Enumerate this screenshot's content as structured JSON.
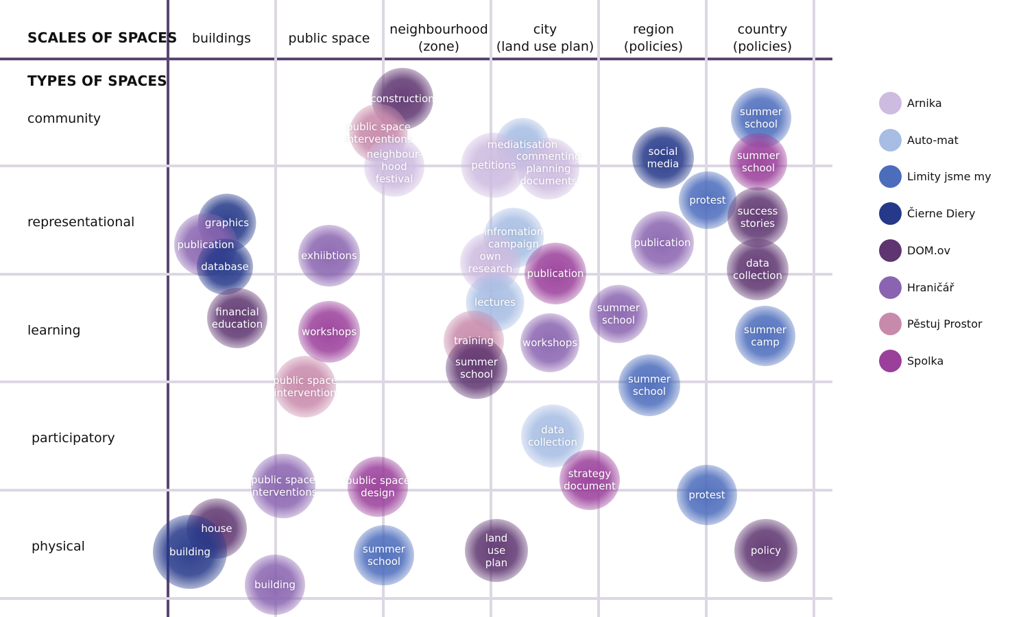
{
  "titles": {
    "scales": "SCALES OF SPACES",
    "types": "TYPES OF SPACES"
  },
  "columns": [
    "buildings",
    "public space",
    "neighbourhood\n(zone)",
    "city\n(land use plan)",
    "region\n(policies)",
    "country\n(policies)"
  ],
  "rows": [
    "community",
    "representational",
    "learning",
    "participatory",
    "physical"
  ],
  "colors": {
    "Arnika": "#cdbbe0",
    "Auto-mat": "#a7bde3",
    "Limity jsme my": "#4c6cbc",
    "Čierne Diery": "#253889",
    "DOM.ov": "#5e3570",
    "Hraničář": "#8a64b0",
    "Pěstuj Prostor": "#c88aab",
    "Spolka": "#9a3f9a"
  },
  "legend": [
    {
      "org": "Arnika",
      "label": "Arnika"
    },
    {
      "org": "Auto-mat",
      "label": "Auto-mat"
    },
    {
      "org": "Limity jsme my",
      "label": "Limity jsme my"
    },
    {
      "org": "Čierne Diery",
      "label": "Čierne Diery"
    },
    {
      "org": "DOM.ov",
      "label": "DOM.ov"
    },
    {
      "org": "Hraničář",
      "label": "Hraničář"
    },
    {
      "org": "Pěstuj Prostor",
      "label": "Pěstuj Prostor"
    },
    {
      "org": "Spolka",
      "label": "Spolka"
    }
  ],
  "activities": [
    {
      "label": "construction",
      "org": "DOM.ov",
      "col": "neighbourhood",
      "row": "community"
    },
    {
      "label": "public space\ninterventions",
      "org": "Pěstuj Prostor",
      "col": "neighbourhood",
      "row": "community"
    },
    {
      "label": "neighbour-\nhood\nfestival",
      "org": "Arnika",
      "col": "neighbourhood",
      "row": "community"
    },
    {
      "label": "mediatisation",
      "org": "Auto-mat",
      "col": "city",
      "row": "community"
    },
    {
      "label": "petitions",
      "org": "Arnika",
      "col": "city",
      "row": "community"
    },
    {
      "label": "commenting\nplanning\ndocuments",
      "org": "Arnika",
      "col": "city",
      "row": "community"
    },
    {
      "label": "social\nmedia",
      "org": "Čierne Diery",
      "col": "region",
      "row": "community"
    },
    {
      "label": "summer\nschool",
      "org": "Limity jsme my",
      "col": "country",
      "row": "community"
    },
    {
      "label": "summer\nschool",
      "org": "Spolka",
      "col": "country",
      "row": "community"
    },
    {
      "label": "protest",
      "org": "Limity jsme my",
      "col": "region",
      "row": "representational"
    },
    {
      "label": "graphics",
      "org": "Čierne Diery",
      "col": "buildings",
      "row": "representational"
    },
    {
      "label": "publication",
      "org": "Hraničář",
      "col": "buildings",
      "row": "representational"
    },
    {
      "label": "database",
      "org": "Čierne Diery",
      "col": "buildings",
      "row": "representational"
    },
    {
      "label": "exhiibtions",
      "org": "Hraničář",
      "col": "public space",
      "row": "representational"
    },
    {
      "label": "infromation\ncampaign",
      "org": "Auto-mat",
      "col": "city",
      "row": "representational"
    },
    {
      "label": "own\nresearch",
      "org": "Arnika",
      "col": "city",
      "row": "representational"
    },
    {
      "label": "publication",
      "org": "Spolka",
      "col": "city",
      "row": "representational"
    },
    {
      "label": "publication",
      "org": "Hraničář",
      "col": "region",
      "row": "representational"
    },
    {
      "label": "success\nstories",
      "org": "DOM.ov",
      "col": "country",
      "row": "representational"
    },
    {
      "label": "data\ncollection",
      "org": "DOM.ov",
      "col": "country",
      "row": "representational"
    },
    {
      "label": "financial\neducation",
      "org": "DOM.ov",
      "col": "buildings",
      "row": "learning"
    },
    {
      "label": "workshops",
      "org": "Spolka",
      "col": "public space",
      "row": "learning"
    },
    {
      "label": "lectures",
      "org": "Auto-mat",
      "col": "city",
      "row": "learning"
    },
    {
      "label": "training",
      "org": "Pěstuj Prostor",
      "col": "city",
      "row": "learning"
    },
    {
      "label": "summer\nschool",
      "org": "DOM.ov",
      "col": "city",
      "row": "learning"
    },
    {
      "label": "workshops",
      "org": "Hraničář",
      "col": "city",
      "row": "learning"
    },
    {
      "label": "summer\nschool",
      "org": "Hraničář",
      "col": "region",
      "row": "learning"
    },
    {
      "label": "summer\ncamp",
      "org": "Limity jsme my",
      "col": "country",
      "row": "learning"
    },
    {
      "label": "public space\nintervention",
      "org": "Pěstuj Prostor",
      "col": "public space",
      "row": "learning"
    },
    {
      "label": "summer\nschool",
      "org": "Limity jsme my",
      "col": "region",
      "row": "learning"
    },
    {
      "label": "data\ncollection",
      "org": "Auto-mat",
      "col": "city",
      "row": "participatory"
    },
    {
      "label": "public space\ninterventions",
      "org": "Hraničář",
      "col": "public space",
      "row": "participatory"
    },
    {
      "label": "public space\ndesign",
      "org": "Spolka",
      "col": "neighbourhood",
      "row": "participatory"
    },
    {
      "label": "strategy\ndocument",
      "org": "Spolka",
      "col": "city",
      "row": "participatory"
    },
    {
      "label": "protest",
      "org": "Limity jsme my",
      "col": "region",
      "row": "participatory"
    },
    {
      "label": "house",
      "org": "DOM.ov",
      "col": "buildings",
      "row": "physical"
    },
    {
      "label": "building",
      "org": "Čierne Diery",
      "col": "buildings",
      "row": "physical"
    },
    {
      "label": "building",
      "org": "Hraničář",
      "col": "public space",
      "row": "physical"
    },
    {
      "label": "summer\nschool",
      "org": "Limity jsme my",
      "col": "neighbourhood",
      "row": "physical"
    },
    {
      "label": "land\nuse\nplan",
      "org": "DOM.ov",
      "col": "city",
      "row": "physical"
    },
    {
      "label": "policy",
      "org": "DOM.ov",
      "col": "country",
      "row": "physical"
    }
  ]
}
